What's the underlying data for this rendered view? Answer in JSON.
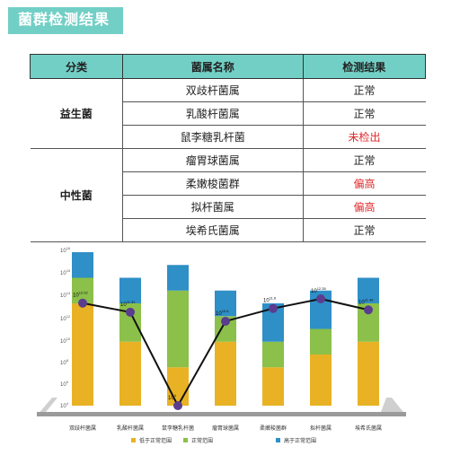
{
  "page_title": "菌群检测结果",
  "table": {
    "headers": [
      "分类",
      "菌属名称",
      "检测结果"
    ],
    "groups": [
      {
        "category": "益生菌",
        "rows": [
          {
            "name": "双歧杆菌属",
            "result": "正常",
            "abnormal": false
          },
          {
            "name": "乳酸杆菌属",
            "result": "正常",
            "abnormal": false
          },
          {
            "name": "鼠李糖乳杆菌",
            "result": "未检出",
            "abnormal": true
          }
        ]
      },
      {
        "category": "中性菌",
        "rows": [
          {
            "name": "瘤胃球菌属",
            "result": "正常",
            "abnormal": false
          },
          {
            "name": "柔嫩梭菌群",
            "result": "偏高",
            "abnormal": true
          },
          {
            "name": "拟杆菌属",
            "result": "偏高",
            "abnormal": true
          },
          {
            "name": "埃希氏菌属",
            "result": "正常",
            "abnormal": false
          }
        ]
      }
    ]
  },
  "colors": {
    "teal": "#72cfc6",
    "abnormal_text": "#e0282a",
    "low_range": "#e8b224",
    "normal_range": "#8bc04a",
    "high_range": "#2f8fc7",
    "marker": "#5b3d8f",
    "line": "#111111",
    "base": "#9a9a9a"
  },
  "chart_data": {
    "type": "bar",
    "y_scale": "log10",
    "ylim_exp": [
      4,
      16
    ],
    "y_tick_labels": [
      "10^4",
      "10^6",
      "10^8",
      "10^10",
      "10^12",
      "10^14",
      "10^15",
      "10^16"
    ],
    "categories": [
      "双歧杆菌属",
      "乳酸杆菌属",
      "鼠李糖乳杆菌",
      "瘤胃球菌属",
      "柔嫩梭菌群",
      "拟杆菌属",
      "埃希氏菌属"
    ],
    "ranges_exp": [
      {
        "normal_low": 12,
        "normal_high": 14,
        "top": 16.0
      },
      {
        "normal_low": 9,
        "normal_high": 12,
        "top": 14.0
      },
      {
        "normal_low": 7,
        "normal_high": 13,
        "top": 15.0
      },
      {
        "normal_low": 9,
        "normal_high": 11,
        "top": 13.0
      },
      {
        "normal_low": 7,
        "normal_high": 9,
        "top": 12.0
      },
      {
        "normal_low": 8,
        "normal_high": 10,
        "top": 13.0
      },
      {
        "normal_low": 9,
        "normal_high": 12,
        "top": 14.0
      }
    ],
    "measured_exp": [
      12.02,
      11.31,
      4.0,
      10.6,
      11.6,
      12.35,
      11.49
    ],
    "value_labels": [
      "10^12.02",
      "10^11.31",
      "10^4",
      "10^10.6",
      "10^11.6",
      "10^12.35",
      "10^11.49"
    ],
    "legend": [
      "低于正常范围",
      "正常范围",
      "高于正常范围"
    ]
  }
}
